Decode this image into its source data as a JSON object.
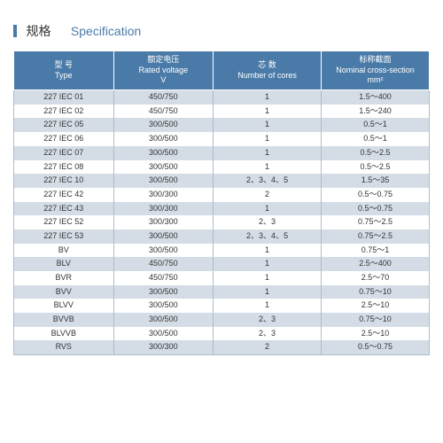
{
  "title": {
    "cn": "规格",
    "en": "Specification"
  },
  "table": {
    "columns": [
      {
        "cn": "型 号",
        "en": "Type"
      },
      {
        "cn": "额定电压",
        "en": "Rated voltage",
        "unit": "V"
      },
      {
        "cn": "芯 数",
        "en": "Number of cores"
      },
      {
        "cn": "标称截面",
        "en": "Nominal cross-section",
        "unit": "mm²"
      }
    ],
    "rows": [
      [
        "227 IEC 01",
        "450/750",
        "1",
        "1.5～400"
      ],
      [
        "227 IEC 02",
        "450/750",
        "1",
        "1.5～240"
      ],
      [
        "227 IEC 05",
        "300/500",
        "1",
        "0.5～1"
      ],
      [
        "227 IEC 06",
        "300/500",
        "1",
        "0.5～1"
      ],
      [
        "227 IEC 07",
        "300/500",
        "1",
        "0.5～2.5"
      ],
      [
        "227 IEC 08",
        "300/500",
        "1",
        "0.5～2.5"
      ],
      [
        "227 IEC 10",
        "300/500",
        "2、3、4、5",
        "1.5～35"
      ],
      [
        "227 IEC 42",
        "300/300",
        "2",
        "0.5～0.75"
      ],
      [
        "227 IEC 43",
        "300/300",
        "1",
        "0.5～0.75"
      ],
      [
        "227 IEC 52",
        "300/300",
        "2、3",
        "0.75～2.5"
      ],
      [
        "227 IEC 53",
        "300/500",
        "2、3、4、5",
        "0.75～2.5"
      ],
      [
        "BV",
        "300/500",
        "1",
        "0.75～1"
      ],
      [
        "BLV",
        "450/750",
        "1",
        "2.5～400"
      ],
      [
        "BVR",
        "450/750",
        "1",
        "2.5～70"
      ],
      [
        "BVV",
        "300/500",
        "1",
        "0.75～10"
      ],
      [
        "BLVV",
        "300/500",
        "1",
        "2.5～10"
      ],
      [
        "BVVB",
        "300/500",
        "2、3",
        "0.75～10"
      ],
      [
        "BLVVB",
        "300/500",
        "2、3",
        "2.5～10"
      ],
      [
        "RVS",
        "300/300",
        "2",
        "0.5～0.75"
      ]
    ]
  },
  "style": {
    "header_bg": "#4a7ba8",
    "row_odd_bg": "#d4dde6",
    "row_even_bg": "#ffffff",
    "border_color": "#a9bdd0",
    "title_bar_color": "#4a7ba8",
    "font_size_table": 9,
    "font_size_title": 14
  }
}
